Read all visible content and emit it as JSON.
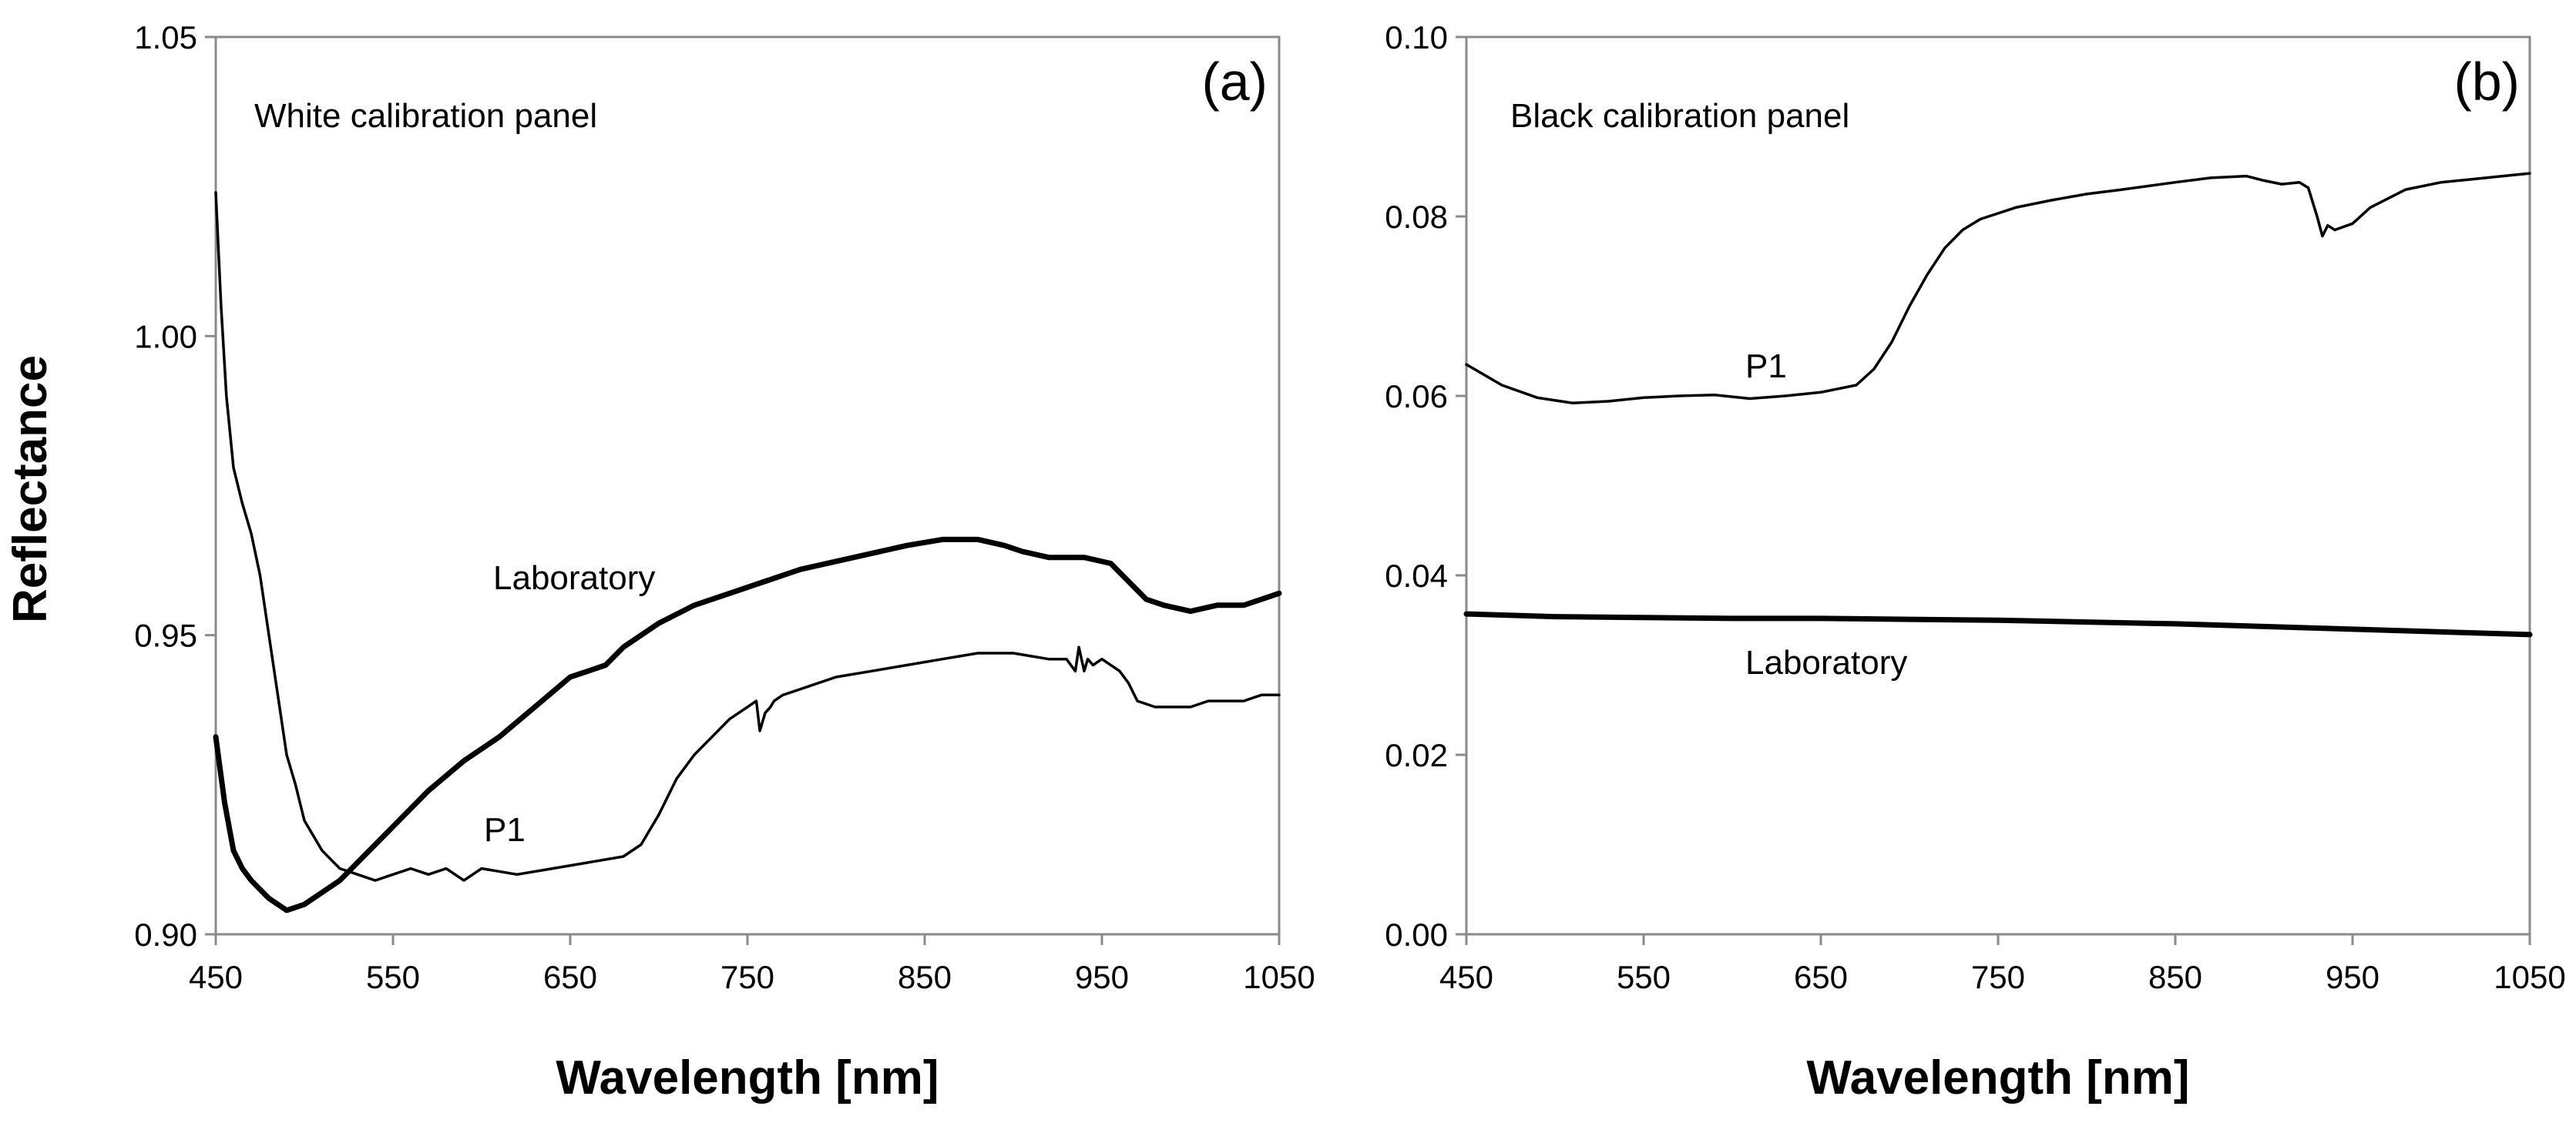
{
  "ylabel": "Reflectance",
  "chart_data": [
    {
      "type": "line",
      "panel_label": "(a)",
      "title": "White calibration panel",
      "xlabel": "Wavelength [nm]",
      "xlim": [
        450,
        1050
      ],
      "ylim": [
        0.9,
        1.05
      ],
      "xticks": [
        "450",
        "550",
        "650",
        "750",
        "850",
        "950",
        "1050"
      ],
      "yticks": [
        "0.90",
        "0.95",
        "1.00",
        "1.05"
      ],
      "series": [
        {
          "name": "Laboratory",
          "line_width": "thick",
          "x": [
            450,
            455,
            460,
            465,
            470,
            480,
            490,
            500,
            510,
            520,
            530,
            540,
            550,
            570,
            590,
            610,
            630,
            650,
            660,
            670,
            680,
            700,
            720,
            750,
            780,
            810,
            840,
            860,
            880,
            895,
            905,
            920,
            940,
            955,
            965,
            975,
            985,
            1000,
            1015,
            1030,
            1040,
            1050
          ],
          "y": [
            0.933,
            0.922,
            0.914,
            0.911,
            0.909,
            0.906,
            0.904,
            0.905,
            0.907,
            0.909,
            0.912,
            0.915,
            0.918,
            0.924,
            0.929,
            0.933,
            0.938,
            0.943,
            0.944,
            0.945,
            0.948,
            0.952,
            0.955,
            0.958,
            0.961,
            0.963,
            0.965,
            0.966,
            0.966,
            0.965,
            0.964,
            0.963,
            0.963,
            0.962,
            0.959,
            0.956,
            0.955,
            0.954,
            0.955,
            0.955,
            0.956,
            0.957
          ]
        },
        {
          "name": "P1",
          "line_width": "thin",
          "x": [
            450,
            453,
            456,
            460,
            465,
            470,
            475,
            480,
            485,
            490,
            495,
            500,
            510,
            520,
            530,
            540,
            550,
            560,
            570,
            580,
            590,
            600,
            620,
            640,
            660,
            680,
            690,
            700,
            710,
            720,
            730,
            740,
            750,
            755,
            757,
            760,
            763,
            765,
            770,
            780,
            800,
            820,
            840,
            860,
            880,
            900,
            920,
            930,
            935,
            937,
            940,
            942,
            945,
            950,
            960,
            965,
            970,
            980,
            990,
            1000,
            1010,
            1020,
            1030,
            1040,
            1050
          ],
          "y": [
            1.024,
            1.005,
            0.99,
            0.978,
            0.972,
            0.967,
            0.96,
            0.95,
            0.94,
            0.93,
            0.925,
            0.919,
            0.914,
            0.911,
            0.91,
            0.909,
            0.91,
            0.911,
            0.91,
            0.911,
            0.909,
            0.911,
            0.91,
            0.911,
            0.912,
            0.913,
            0.915,
            0.92,
            0.926,
            0.93,
            0.933,
            0.936,
            0.938,
            0.939,
            0.934,
            0.937,
            0.938,
            0.939,
            0.94,
            0.941,
            0.943,
            0.944,
            0.945,
            0.946,
            0.947,
            0.947,
            0.946,
            0.946,
            0.944,
            0.948,
            0.944,
            0.946,
            0.945,
            0.946,
            0.944,
            0.942,
            0.939,
            0.938,
            0.938,
            0.938,
            0.939,
            0.939,
            0.939,
            0.94,
            0.94
          ]
        }
      ],
      "annotations": [
        "Laboratory",
        "P1"
      ]
    },
    {
      "type": "line",
      "panel_label": "(b)",
      "title": "Black calibration panel",
      "xlabel": "Wavelength [nm]",
      "xlim": [
        450,
        1050
      ],
      "ylim": [
        0.0,
        0.1
      ],
      "xticks": [
        "450",
        "550",
        "650",
        "750",
        "850",
        "950",
        "1050"
      ],
      "yticks": [
        "0.00",
        "0.02",
        "0.04",
        "0.06",
        "0.08",
        "0.10"
      ],
      "series": [
        {
          "name": "P1",
          "line_width": "thin",
          "x": [
            450,
            470,
            490,
            510,
            530,
            550,
            570,
            590,
            610,
            630,
            650,
            670,
            680,
            690,
            700,
            710,
            720,
            730,
            740,
            760,
            780,
            800,
            820,
            850,
            870,
            890,
            900,
            910,
            920,
            925,
            930,
            933,
            936,
            940,
            950,
            960,
            980,
            1000,
            1020,
            1040,
            1050
          ],
          "y": [
            0.0635,
            0.0612,
            0.0598,
            0.0592,
            0.0594,
            0.0598,
            0.06,
            0.0601,
            0.0597,
            0.06,
            0.0604,
            0.0612,
            0.063,
            0.066,
            0.07,
            0.0735,
            0.0765,
            0.0785,
            0.0797,
            0.081,
            0.0818,
            0.0825,
            0.083,
            0.0838,
            0.0843,
            0.0845,
            0.084,
            0.0836,
            0.0838,
            0.0832,
            0.08,
            0.0778,
            0.079,
            0.0785,
            0.0792,
            0.081,
            0.083,
            0.0838,
            0.0842,
            0.0846,
            0.0848
          ]
        },
        {
          "name": "Laboratory",
          "line_width": "thick",
          "x": [
            450,
            500,
            550,
            600,
            650,
            700,
            750,
            800,
            850,
            900,
            950,
            1000,
            1050
          ],
          "y": [
            0.0357,
            0.0354,
            0.0353,
            0.0352,
            0.0352,
            0.0351,
            0.035,
            0.0348,
            0.0346,
            0.0343,
            0.034,
            0.0337,
            0.0334
          ]
        }
      ],
      "annotations": [
        "P1",
        "Laboratory"
      ]
    }
  ]
}
